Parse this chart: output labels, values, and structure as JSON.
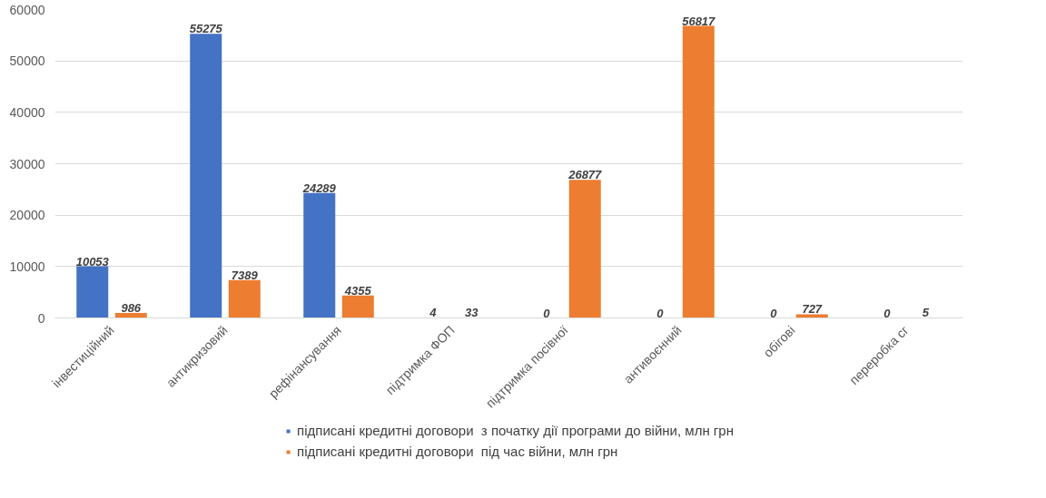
{
  "chart_data": {
    "type": "bar",
    "categories": [
      "інвестиційний",
      "антикризовий",
      "рефінансування",
      "підтримка ФОП",
      "підтримка посівної",
      "антивоєнний",
      "обігові",
      "переробка сг"
    ],
    "series": [
      {
        "name": "підписані кредитні договори  з початку дії програми до війни, млн грн",
        "color": "#4472c4",
        "values": [
          10053,
          55275,
          24289,
          4,
          0,
          0,
          0,
          0
        ]
      },
      {
        "name": "підписані кредитні договори  під час війни, млн грн",
        "color": "#ed7d31",
        "values": [
          986,
          7389,
          4355,
          33,
          26877,
          56817,
          727,
          5
        ]
      }
    ],
    "ylim": [
      0,
      60000
    ],
    "yticks": [
      0,
      10000,
      20000,
      30000,
      40000,
      50000,
      60000
    ],
    "grid": "y",
    "legend": "bottom",
    "data_labels": true
  }
}
